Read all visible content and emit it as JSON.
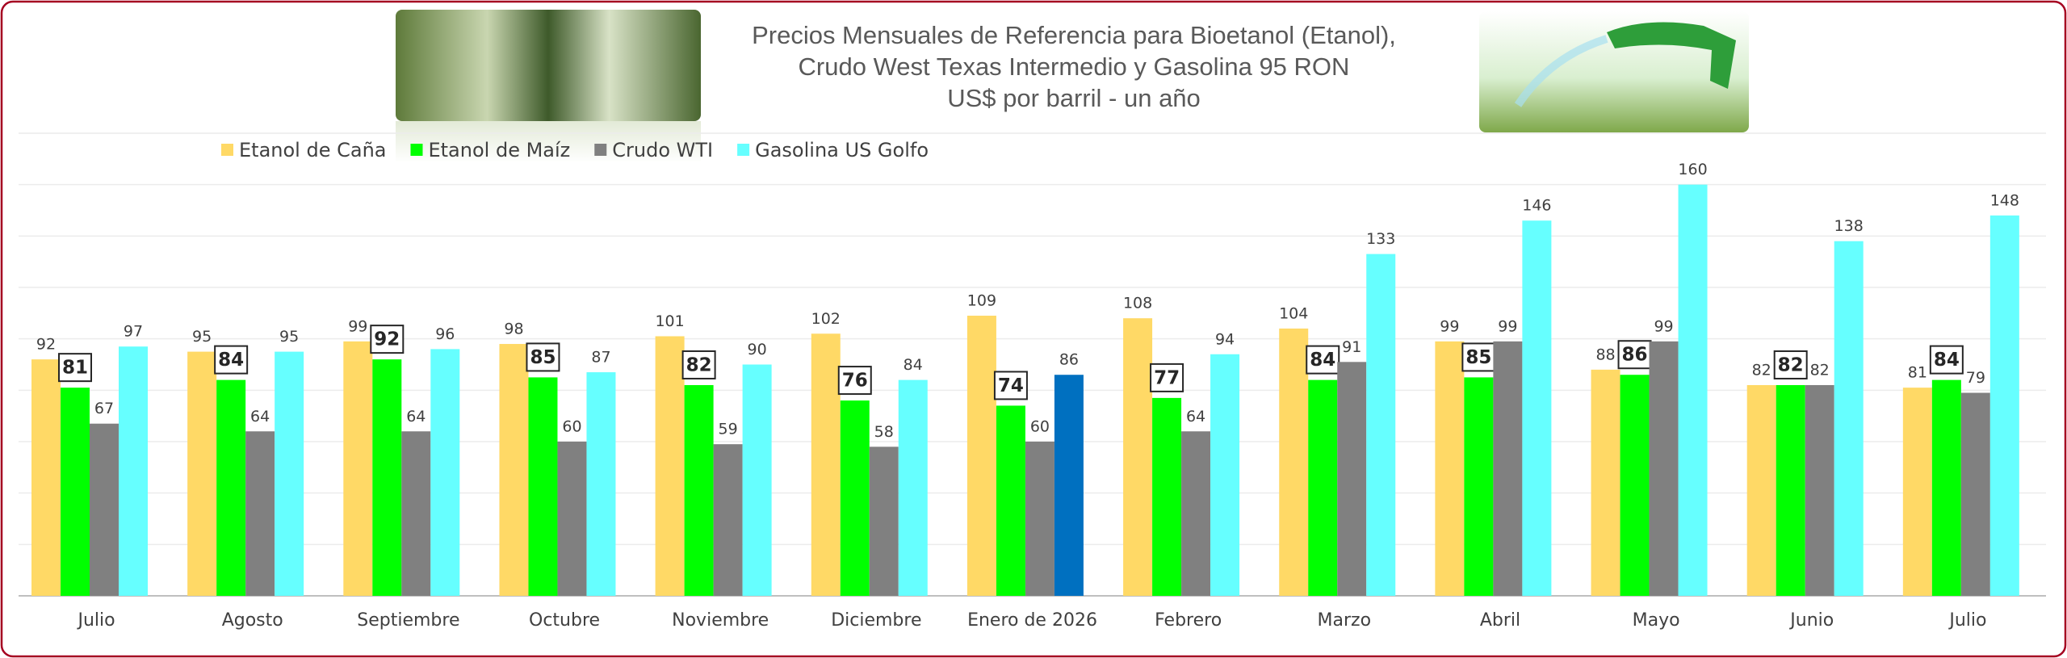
{
  "chart_data": {
    "type": "bar",
    "title": [
      "Precios Mensuales de Referencia para Bioetanol (Etanol),",
      "Crudo West Texas Intermedio y Gasolina 95 RON",
      "US$ por barril - un año"
    ],
    "categories": [
      "Julio",
      "Agosto",
      "Septiembre",
      "Octubre",
      "Noviembre",
      "Diciembre",
      "Enero de 2026",
      "Febrero",
      "Marzo",
      "Abril",
      "Mayo",
      "Junio",
      "Julio"
    ],
    "series": [
      {
        "name": "Etanol de Caña",
        "color": "#ffd966",
        "values": [
          92,
          95,
          99,
          98,
          101,
          102,
          109,
          108,
          104,
          99,
          88,
          82,
          81
        ]
      },
      {
        "name": "Etanol de Maíz",
        "color": "#00ff00",
        "label_style": "boxed",
        "values": [
          81,
          84,
          92,
          85,
          82,
          76,
          74,
          77,
          84,
          85,
          86,
          82,
          84
        ]
      },
      {
        "name": "Crudo WTI",
        "color": "#808080",
        "values": [
          67,
          64,
          64,
          60,
          59,
          58,
          60,
          64,
          91,
          99,
          99,
          82,
          79
        ]
      },
      {
        "name": "Gasolina US Golfo",
        "color": "#66ffff",
        "point_colors": {
          "6": "#0070c0"
        },
        "values": [
          97,
          95,
          96,
          87,
          90,
          84,
          86,
          94,
          133,
          146,
          160,
          138,
          148
        ]
      }
    ],
    "ylim": [
      0,
      180
    ],
    "yticks": [
      0,
      20,
      40,
      60,
      80,
      100,
      120,
      140,
      160,
      180
    ],
    "grid": true,
    "legend": "top-left"
  }
}
